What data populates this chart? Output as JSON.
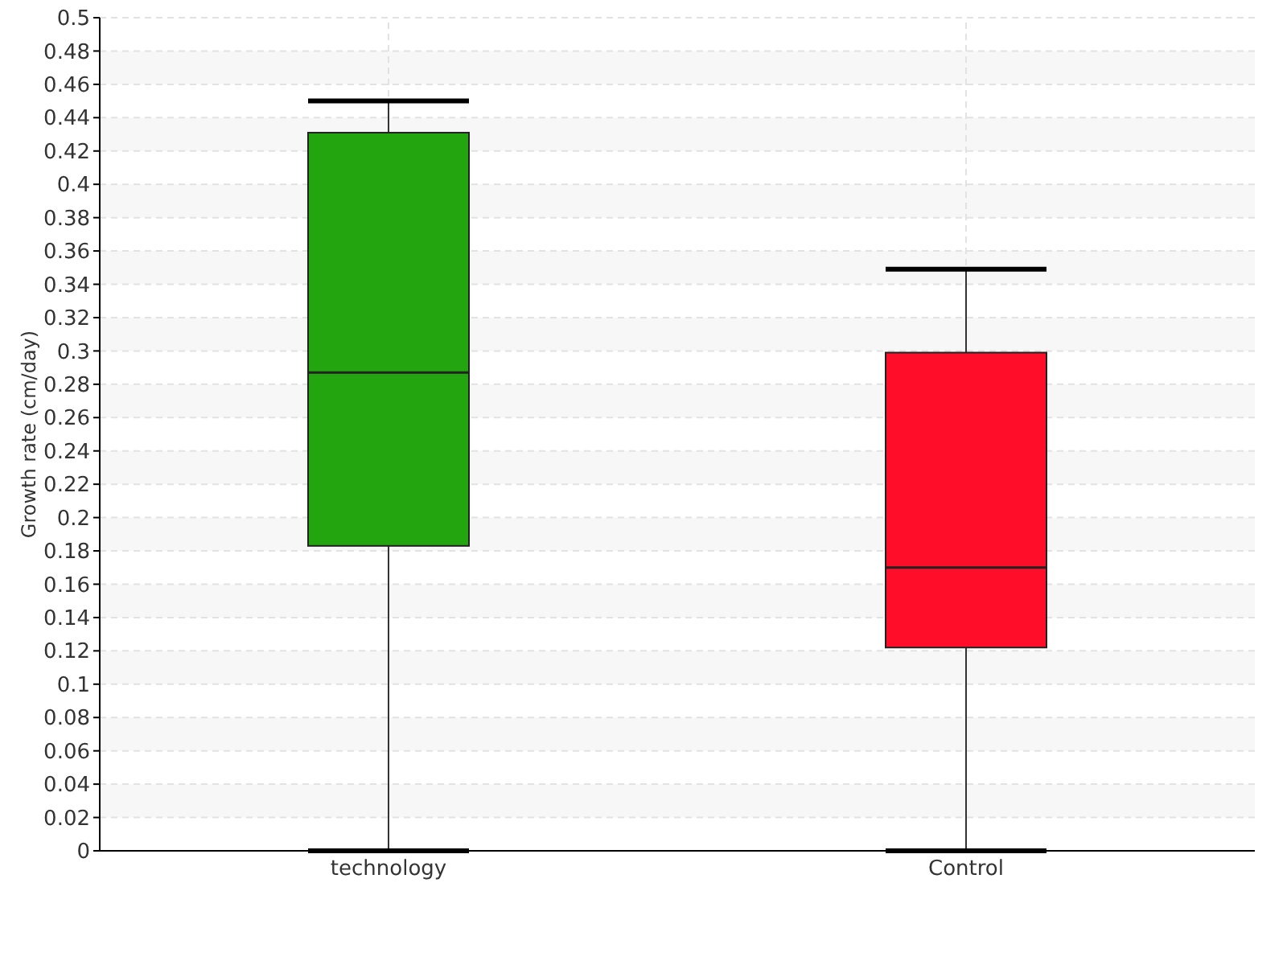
{
  "chart_data": {
    "type": "box",
    "ylabel": "Growth rate (cm/day)",
    "categories": [
      "technology",
      "Control"
    ],
    "boxes": [
      {
        "low": 0,
        "q1": 0.183,
        "median": 0.287,
        "q3": 0.431,
        "high": 0.45
      },
      {
        "low": 0,
        "q1": 0.122,
        "median": 0.17,
        "q3": 0.299,
        "high": 0.349
      }
    ],
    "colors": [
      "#22a50f",
      "#ff0d29"
    ],
    "ylim": [
      0,
      0.5
    ],
    "yticks": [
      0,
      0.02,
      0.04,
      0.06,
      0.08,
      0.1,
      0.12,
      0.14,
      0.16,
      0.18,
      0.2,
      0.22,
      0.24,
      0.26,
      0.28,
      0.3,
      0.32,
      0.34,
      0.36,
      0.38,
      0.4,
      0.42,
      0.44,
      0.46,
      0.48,
      0.5
    ],
    "grid": true
  }
}
